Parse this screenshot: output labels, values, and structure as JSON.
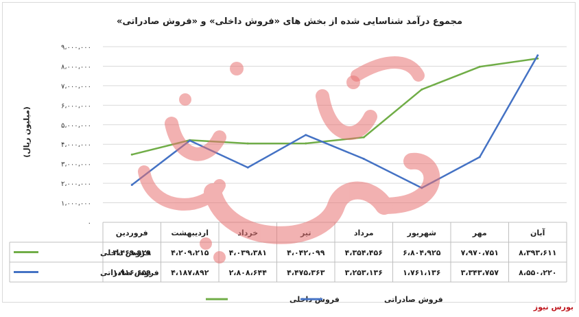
{
  "chart_data": {
    "type": "line",
    "title": "مجموع درآمد شناسایی شده از بخش های «فروش داخلی» و «فروش صادراتی»",
    "ylabel": "(میلیون ریال)",
    "ylim": [
      0,
      9000000
    ],
    "yticks": [
      "۰",
      "۱،۰۰۰،۰۰۰",
      "۲،۰۰۰،۰۰۰",
      "۳،۰۰۰،۰۰۰",
      "۴،۰۰۰،۰۰۰",
      "۵،۰۰۰،۰۰۰",
      "۶،۰۰۰،۰۰۰",
      "۷،۰۰۰،۰۰۰",
      "۸،۰۰۰،۰۰۰",
      "۹،۰۰۰،۰۰۰"
    ],
    "categories": [
      "فروردین",
      "اردیبهشت",
      "خرداد",
      "تیر",
      "مرداد",
      "شهریور",
      "مهر",
      "آبان"
    ],
    "grid": true,
    "legend": "bottom",
    "series": [
      {
        "name": "فروش داخلی",
        "color": "#70ad47",
        "values": [
          3469929,
          4209215,
          4039381,
          4042099,
          4354456,
          6804925,
          7970751,
          8393611
        ],
        "labels": [
          "۳،۴۶۹،۹۲۹",
          "۴،۲۰۹،۲۱۵",
          "۴،۰۳۹،۳۸۱",
          "۴،۰۴۲،۰۹۹",
          "۴،۳۵۴،۴۵۶",
          "۶،۸۰۴،۹۲۵",
          "۷،۹۷۰،۷۵۱",
          "۸،۳۹۳،۶۱۱"
        ]
      },
      {
        "name": "فروش صادراتی",
        "color": "#4472c4",
        "values": [
          1916659,
          4187892,
          2808644,
          4475363,
          3253136,
          1761136,
          3343757,
          8550220
        ],
        "labels": [
          "۱،۹۱۶،۶۵۹",
          "۴،۱۸۷،۸۹۲",
          "۲،۸۰۸،۶۴۴",
          "۴،۴۷۵،۳۶۳",
          "۳،۲۵۳،۱۳۶",
          "۱،۷۶۱،۱۳۶",
          "۳،۳۴۳،۷۵۷",
          "۸،۵۵۰،۲۲۰"
        ]
      }
    ]
  },
  "watermark": {
    "text": "بورس نیوز",
    "color": "#e87272"
  },
  "brand": "بورس نیوز"
}
